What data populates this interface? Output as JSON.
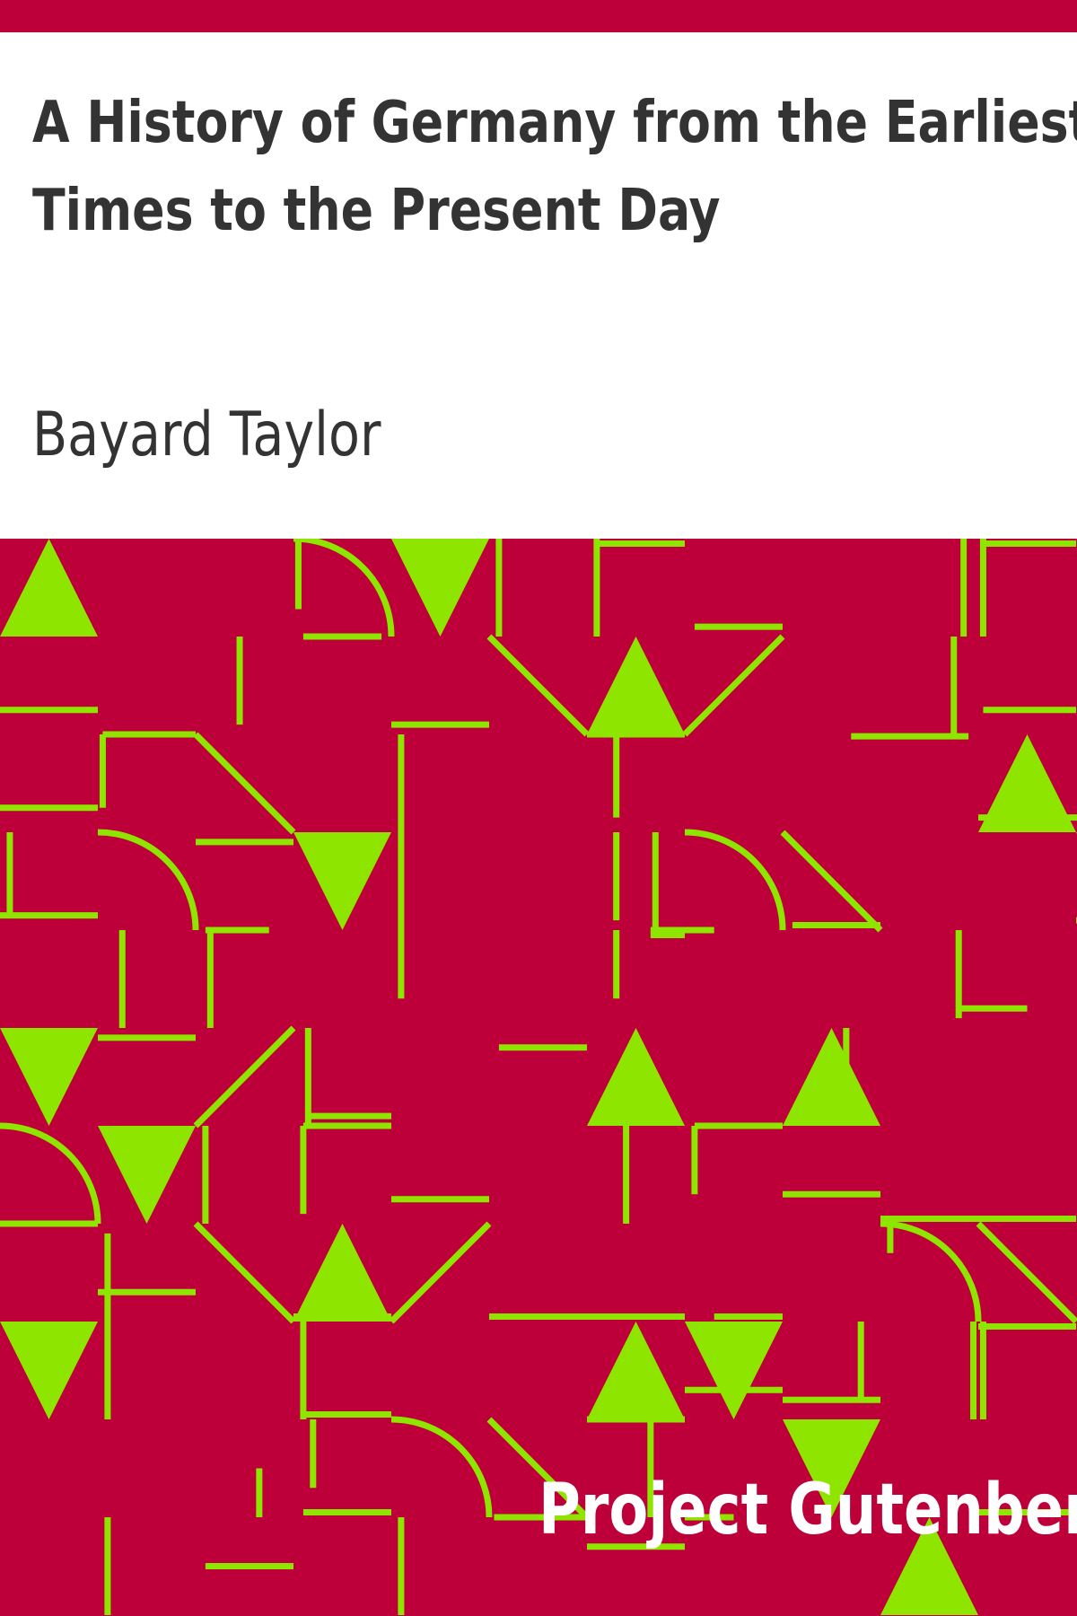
{
  "book": {
    "title_line1": "A History of Germany from the Earliest",
    "title_line2": "Times to the Present Day",
    "author": "Bayard Taylor",
    "publisher": "Project Gutenberg"
  },
  "colors": {
    "band": "#bd003a",
    "pattern_background": "#bd003a",
    "pattern_lines": "#8ee600",
    "title_text": "#333333",
    "publisher_text": "#ffffff"
  }
}
